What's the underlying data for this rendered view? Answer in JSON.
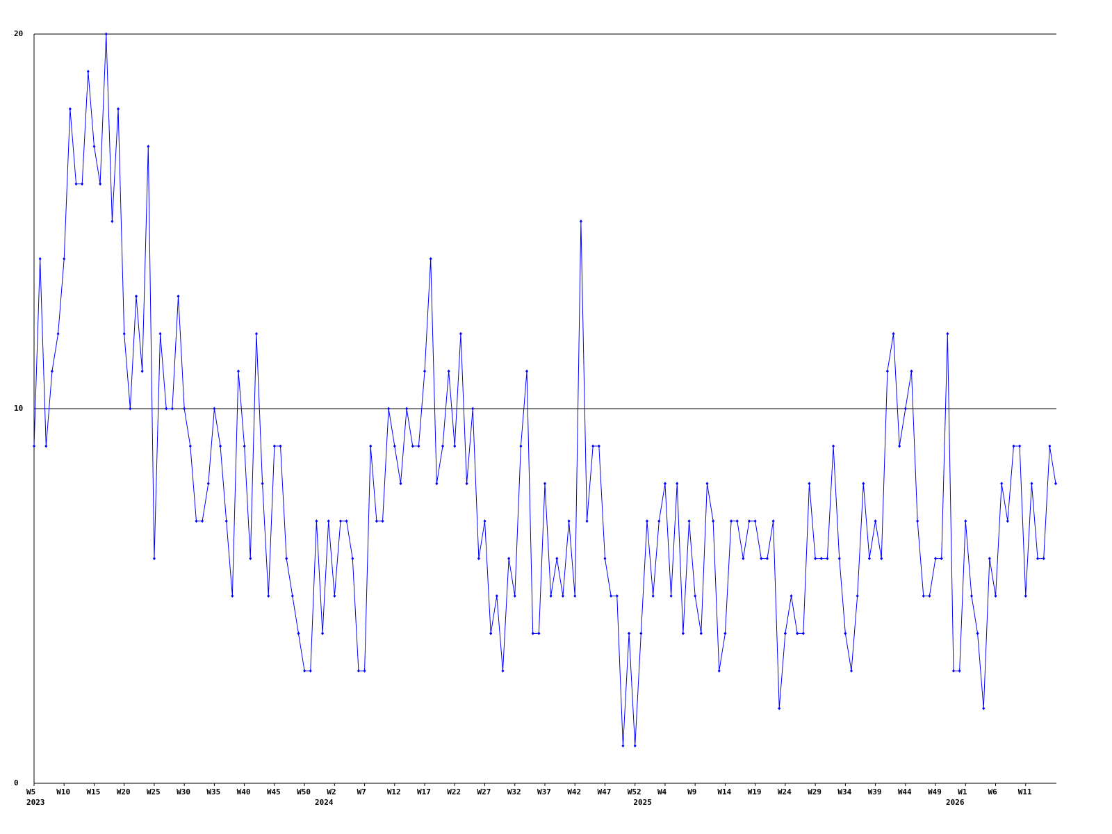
{
  "chart_data": {
    "type": "line",
    "categories": [
      "W5",
      null,
      null,
      null,
      null,
      "W10",
      null,
      null,
      null,
      null,
      "W15",
      null,
      null,
      null,
      null,
      "W20",
      null,
      null,
      null,
      null,
      "W25",
      null,
      null,
      null,
      null,
      "W30",
      null,
      null,
      null,
      null,
      "W35",
      null,
      null,
      null,
      null,
      "W40",
      null,
      null,
      null,
      null,
      "W45",
      null,
      null,
      null,
      null,
      "W50",
      null,
      null,
      null,
      null,
      "W2",
      null,
      null,
      null,
      null,
      "W7",
      null,
      null,
      null,
      null,
      "W12",
      null,
      null,
      null,
      null,
      "W17",
      null,
      null,
      null,
      null,
      "W22",
      null,
      null,
      null,
      null,
      "W27",
      null,
      null,
      null,
      null,
      "W32",
      null,
      null,
      null,
      null,
      "W37",
      null,
      null,
      null,
      null,
      "W42",
      null,
      null,
      null,
      null,
      "W47",
      null,
      null,
      null,
      null,
      "W52",
      null,
      null,
      null,
      null,
      "W4",
      null,
      null,
      null,
      null,
      "W9",
      null,
      null,
      null,
      null,
      "W14",
      null,
      null,
      null,
      null,
      "W19",
      null,
      null,
      null,
      null,
      "W24",
      null,
      null,
      null,
      null,
      "W29",
      null,
      null,
      null,
      null,
      "W34",
      null,
      null,
      null,
      null,
      "W39",
      null,
      null,
      null,
      null,
      "W44",
      null,
      null,
      null,
      null,
      "W49",
      null,
      null,
      null,
      null,
      "W1",
      null,
      null,
      null,
      null,
      "W6",
      null,
      null,
      null,
      null,
      "W11",
      null,
      null,
      null,
      null,
      null
    ],
    "category_years": [
      "2023",
      null,
      null,
      null,
      null,
      null,
      null,
      null,
      null,
      null,
      null,
      null,
      null,
      null,
      null,
      null,
      null,
      null,
      null,
      null,
      null,
      null,
      null,
      null,
      null,
      null,
      null,
      null,
      null,
      null,
      null,
      null,
      null,
      null,
      null,
      null,
      null,
      null,
      null,
      null,
      null,
      null,
      null,
      null,
      null,
      null,
      null,
      null,
      "2024",
      null,
      null,
      null,
      null,
      null,
      null,
      null,
      null,
      null,
      null,
      null,
      null,
      null,
      null,
      null,
      null,
      null,
      null,
      null,
      null,
      null,
      null,
      null,
      null,
      null,
      null,
      null,
      null,
      null,
      null,
      null,
      null,
      null,
      null,
      null,
      null,
      null,
      null,
      null,
      null,
      null,
      null,
      null,
      null,
      null,
      null,
      null,
      null,
      null,
      null,
      null,
      null,
      "2025",
      null,
      null,
      null,
      null,
      null,
      null,
      null,
      null,
      null,
      null,
      null,
      null,
      null,
      null,
      null,
      null,
      null,
      null,
      null,
      null,
      null,
      null,
      null,
      null,
      null,
      null,
      null,
      null,
      null,
      null,
      null,
      null,
      null,
      null,
      null,
      null,
      null,
      null,
      null,
      null,
      null,
      null,
      null,
      null,
      null,
      null,
      null,
      null,
      null,
      null,
      null,
      "2026",
      null,
      null,
      null,
      null,
      null,
      null,
      null,
      null,
      null,
      null,
      null,
      null,
      null,
      null,
      null,
      null,
      null
    ],
    "values": [
      9,
      14,
      9,
      11,
      12,
      14,
      18,
      16,
      16,
      19,
      17,
      16,
      20,
      15,
      18,
      12,
      10,
      13,
      11,
      17,
      6,
      12,
      10,
      10,
      13,
      10,
      9,
      7,
      7,
      8,
      10,
      9,
      7,
      5,
      11,
      9,
      6,
      12,
      8,
      5,
      9,
      9,
      6,
      5,
      4,
      3,
      3,
      7,
      4,
      7,
      5,
      7,
      7,
      6,
      3,
      3,
      9,
      7,
      7,
      10,
      9,
      8,
      10,
      9,
      9,
      11,
      14,
      8,
      9,
      11,
      9,
      12,
      8,
      10,
      6,
      7,
      4,
      5,
      3,
      6,
      5,
      9,
      11,
      4,
      4,
      8,
      5,
      6,
      5,
      7,
      5,
      15,
      7,
      9,
      9,
      6,
      5,
      5,
      1,
      4,
      1,
      4,
      7,
      5,
      7,
      8,
      5,
      8,
      4,
      7,
      5,
      4,
      8,
      7,
      3,
      4,
      7,
      7,
      6,
      7,
      7,
      6,
      6,
      7,
      2,
      4,
      5,
      4,
      4,
      8,
      6,
      6,
      6,
      9,
      6,
      4,
      3,
      5,
      8,
      6,
      7,
      6,
      11,
      12,
      9,
      10,
      11,
      7,
      5,
      5,
      6,
      6,
      12,
      3,
      3,
      7,
      5,
      4,
      2,
      6,
      5,
      8,
      7,
      9,
      9,
      5,
      8,
      6,
      6,
      9,
      8
    ],
    "color": "#0000ff",
    "ylim": [
      0,
      20
    ],
    "yticks": [
      0,
      10,
      20
    ],
    "grid": true
  }
}
